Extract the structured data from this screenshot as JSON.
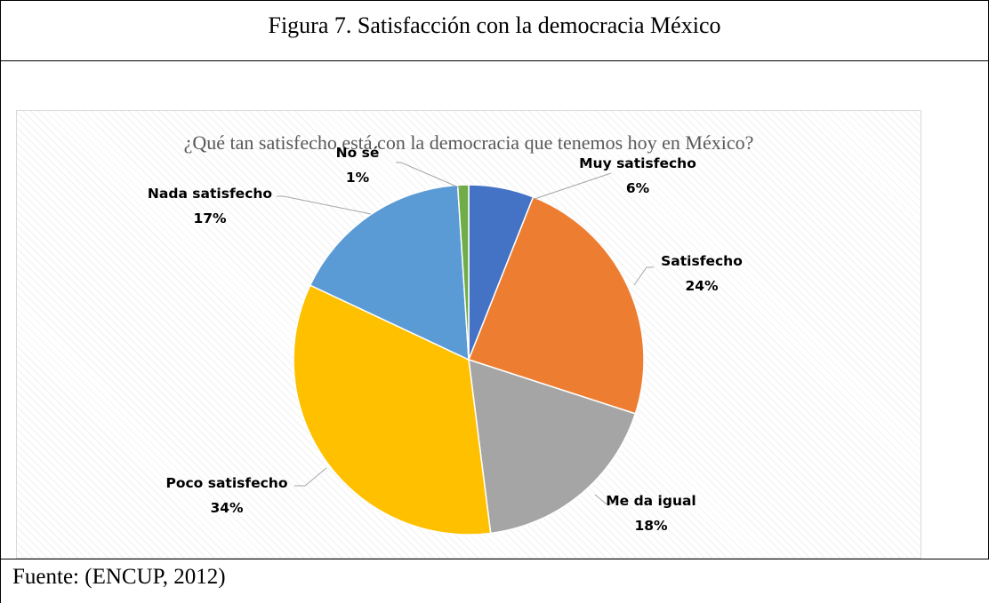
{
  "figure": {
    "caption": "Figura 7. Satisfacción con la democracia México",
    "source": "Fuente: (ENCUP, 2012)"
  },
  "chart_data": {
    "type": "pie",
    "title": "¿Qué tan satisfecho está con la democracia que tenemos hoy en México?",
    "slices": [
      {
        "label": "Muy satisfecho",
        "value": 6,
        "display": "6%",
        "color": "#4472C4"
      },
      {
        "label": "Satisfecho",
        "value": 24,
        "display": "24%",
        "color": "#ED7D31"
      },
      {
        "label": "Me da igual",
        "value": 18,
        "display": "18%",
        "color": "#A5A5A5"
      },
      {
        "label": "Poco satisfecho",
        "value": 34,
        "display": "34%",
        "color": "#FFC000"
      },
      {
        "label": "Nada satisfecho",
        "value": 17,
        "display": "17%",
        "color": "#5B9BD5"
      },
      {
        "label": "No sé",
        "value": 1,
        "display": "1%",
        "color": "#70AD47"
      }
    ]
  }
}
